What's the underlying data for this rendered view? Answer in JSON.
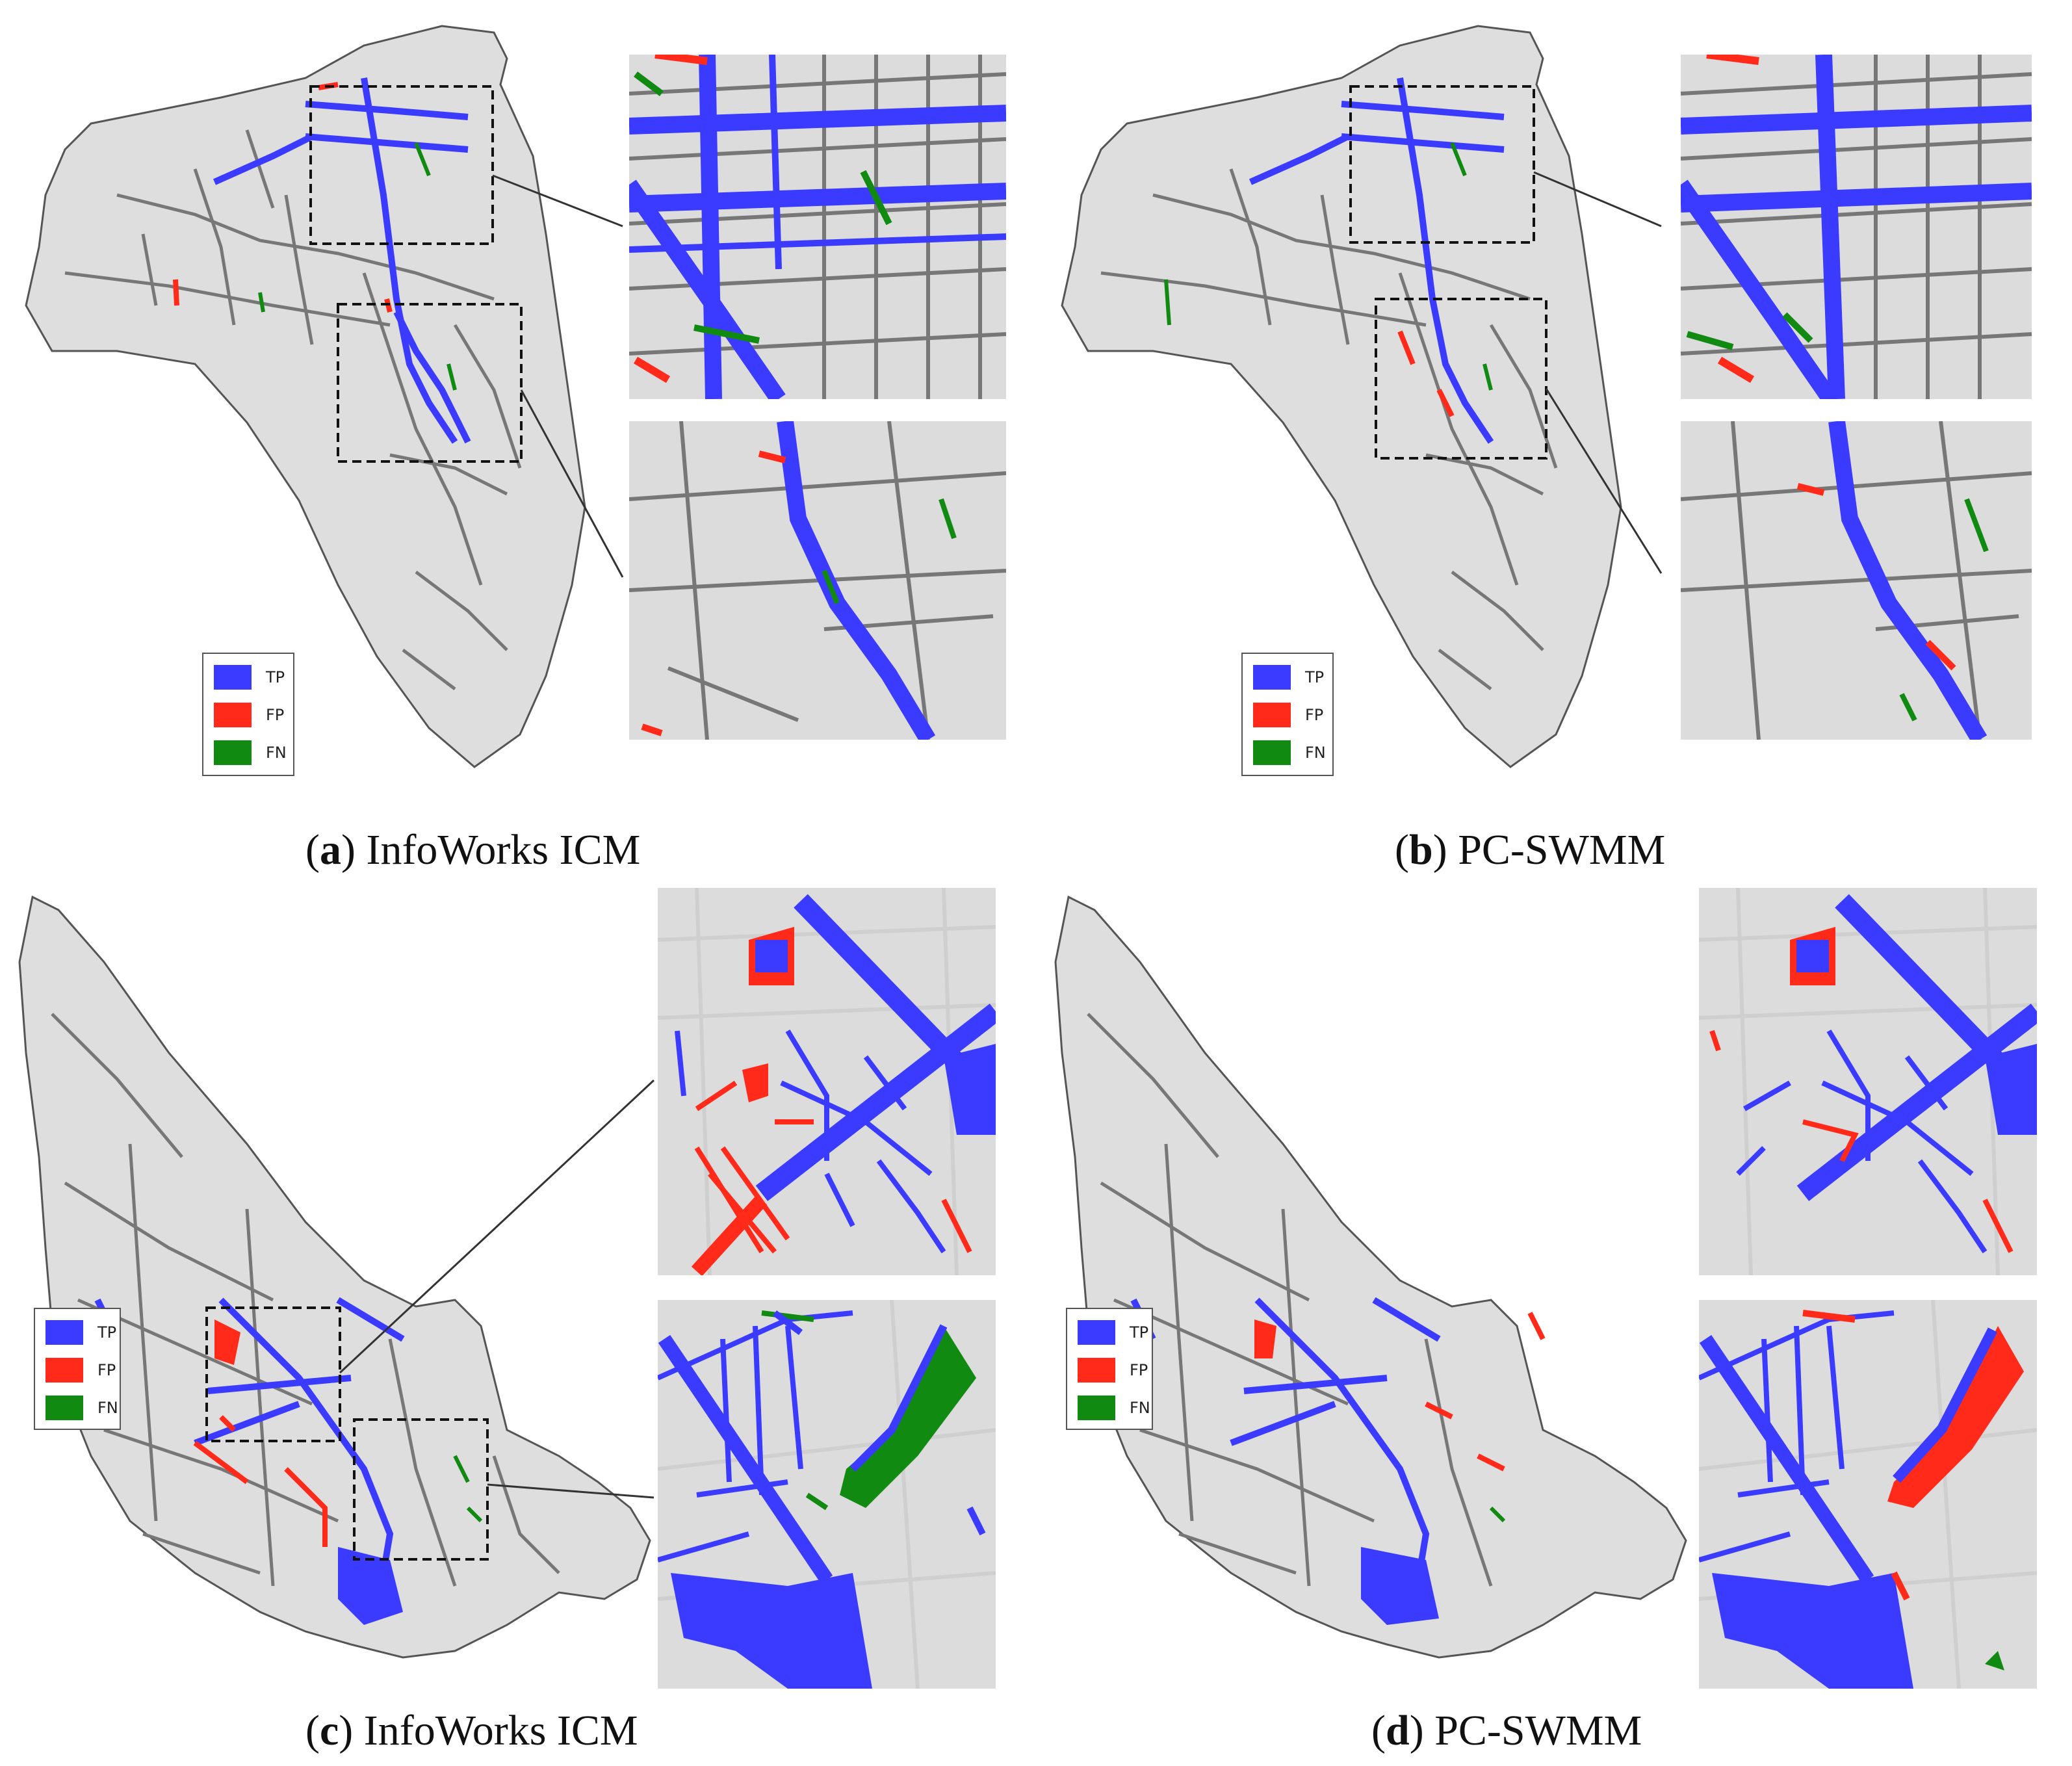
{
  "legend_colors": {
    "tp": "#3b3bff",
    "fp": "#ff2a1a",
    "fn": "#108a10"
  },
  "panels": [
    {
      "id": "a",
      "caption_letter": "a",
      "caption_text": "InfoWorks ICM",
      "legend": {
        "tp": "TP",
        "fp": "FP",
        "fn": "FN"
      }
    },
    {
      "id": "b",
      "caption_letter": "b",
      "caption_text": "PC-SWMM",
      "legend": {
        "tp": "TP",
        "fp": "FP",
        "fn": "FN"
      }
    },
    {
      "id": "c",
      "caption_letter": "c",
      "caption_text": "InfoWorks ICM",
      "legend": {
        "tp": "TP",
        "fp": "FP",
        "fn": "FN"
      }
    },
    {
      "id": "d",
      "caption_letter": "d",
      "caption_text": "PC-SWMM",
      "legend": {
        "tp": "TP",
        "fp": "FP",
        "fn": "FN"
      }
    }
  ]
}
